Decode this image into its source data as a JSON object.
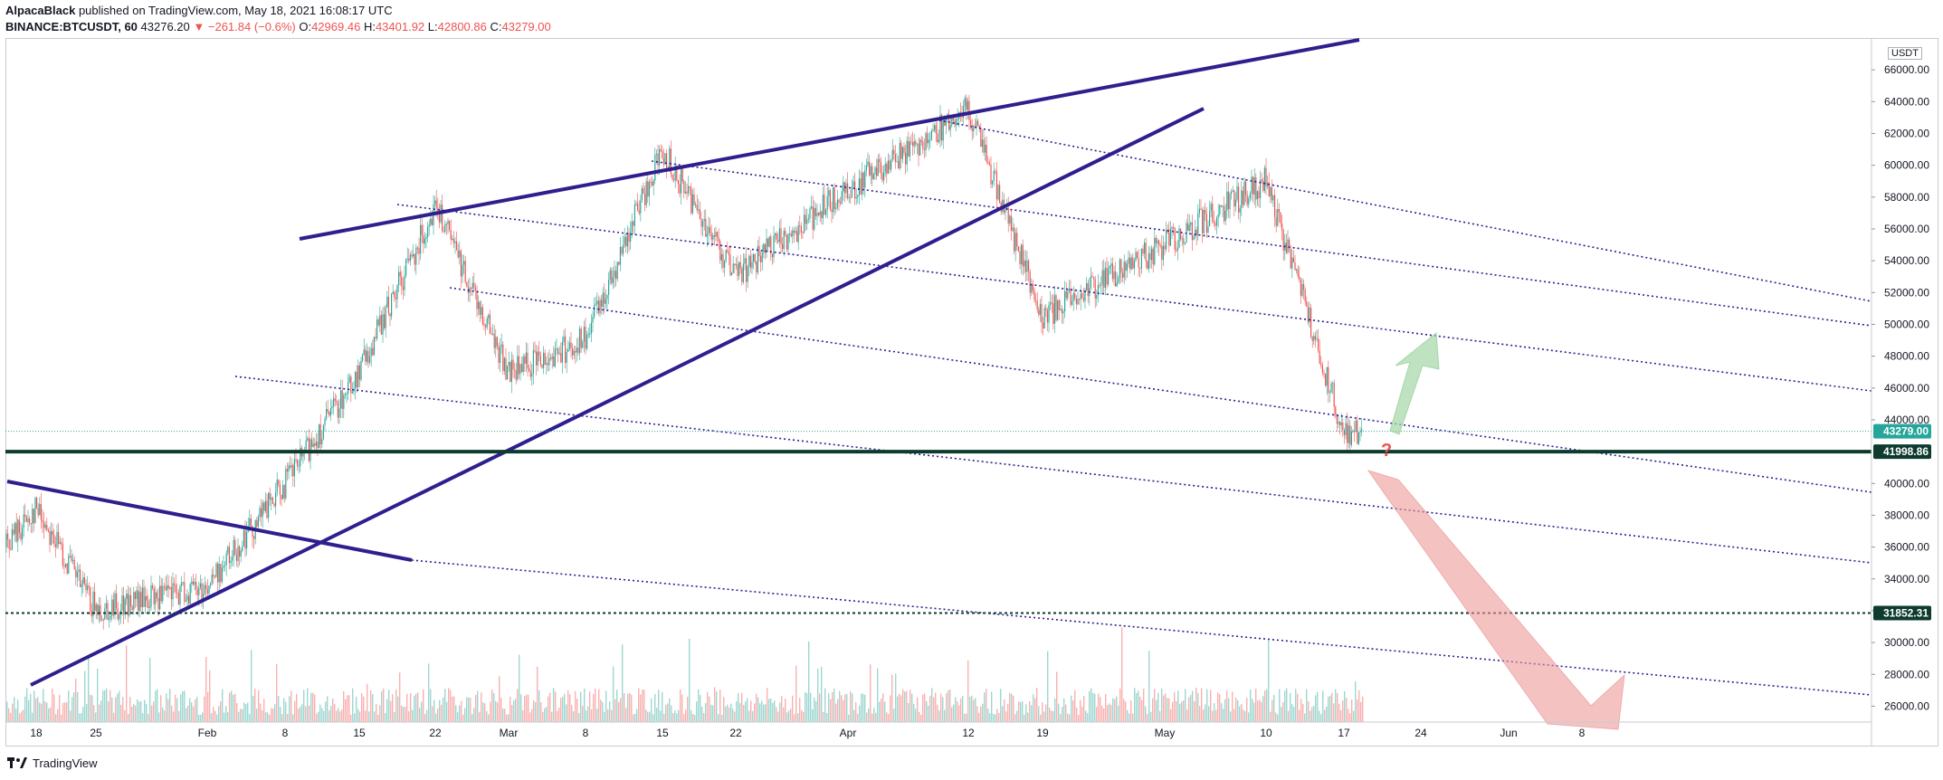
{
  "header": {
    "author": "AlpacaBlack",
    "published_text": "published on TradingView.com, May 18, 2021 16:08:17 UTC",
    "symbol": "BINANCE:BTCUSDT, 60",
    "last": "43276.20",
    "change": "▼ −261.84 (−0.6%)",
    "o_label": "O:",
    "o": "42969.46",
    "h_label": "H:",
    "h": "43401.92",
    "l_label": "L:",
    "l": "42800.86",
    "c_label": "C:",
    "c": "43279.00"
  },
  "footer": {
    "brand": "TradingView"
  },
  "colors": {
    "trendline": "#2e1f8f",
    "channel": "#2e1f8f",
    "support": "#0d3b2e",
    "price_badge": "#26a69a",
    "support_badge": "#0d3b2e",
    "up_candle": "#26a69a",
    "down_candle": "#ef5350",
    "up_arrow": "#a5d6a7",
    "down_arrow": "#ef9a9a",
    "question": "#ef5350"
  },
  "chart_data": {
    "type": "candlestick",
    "unit_label": "USDT",
    "y_axis_ticks": [
      "66000.00",
      "64000.00",
      "62000.00",
      "60000.00",
      "58000.00",
      "56000.00",
      "54000.00",
      "52000.00",
      "50000.00",
      "48000.00",
      "46000.00",
      "44000.00",
      "40000.00",
      "38000.00",
      "36000.00",
      "34000.00",
      "32000.00",
      "30000.00",
      "28000.00",
      "26000.00"
    ],
    "ylim": [
      25000,
      68000
    ],
    "x_axis_ticks": [
      "18",
      "25",
      "Feb",
      "8",
      "15",
      "22",
      "Mar",
      "8",
      "15",
      "22",
      "Apr",
      "12",
      "19",
      "May",
      "10",
      "17",
      "24",
      "Jun",
      "8"
    ],
    "price_labels": [
      {
        "text": "43279.00",
        "value": 43279.0,
        "role": "last-price"
      },
      {
        "text": "41998.86",
        "value": 41998.86,
        "role": "support"
      },
      {
        "text": "31852.31",
        "value": 31852.31,
        "role": "support-dotted"
      }
    ],
    "annotation": "?",
    "price_path": [
      [
        "18",
        38500
      ],
      [
        "25",
        32000
      ],
      [
        "Feb",
        33500
      ],
      [
        "8",
        40000
      ],
      [
        "15",
        47000
      ],
      [
        "22",
        57500
      ],
      [
        "Mar",
        47000
      ],
      [
        "8",
        49000
      ],
      [
        "15",
        61000
      ],
      [
        "22",
        53000
      ],
      [
        "Apr",
        58500
      ],
      [
        "12",
        63500
      ],
      [
        "19",
        50500
      ],
      [
        "May",
        55000
      ],
      [
        "10",
        59000
      ],
      [
        "17",
        43200
      ]
    ]
  }
}
